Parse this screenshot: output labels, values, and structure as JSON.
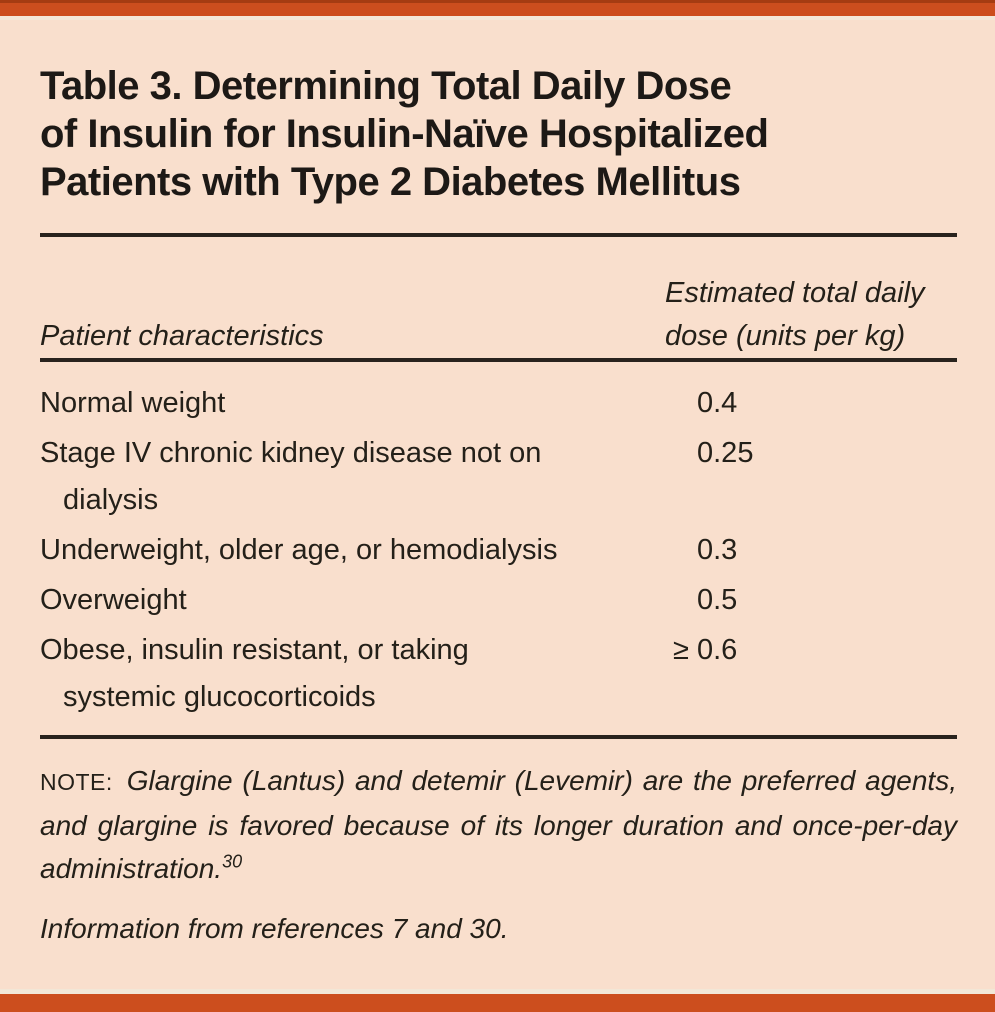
{
  "table": {
    "number_label": "Table 3.",
    "title_full": "Table 3. Determining Total Daily Dose of Insulin for Insulin-Naïve Hospitalized Patients with Type 2 Diabetes Mellitus",
    "title_lines": {
      "0": "Table 3. Determining Total Daily Dose",
      "1": "of Insulin for Insulin-Naïve Hospitalized",
      "2": "Patients with Type 2 Diabetes Mellitus"
    },
    "columns": {
      "characteristics": "Patient characteristics",
      "dose": "Estimated total daily dose (units per kg)"
    },
    "rows": {
      "0": {
        "line1": "Normal weight",
        "line2": "",
        "prefix": "",
        "value": "0.4"
      },
      "1": {
        "line1": "Stage IV chronic kidney disease not on",
        "line2": "dialysis",
        "prefix": "",
        "value": "0.25"
      },
      "2": {
        "line1": "Underweight, older age, or hemodialysis",
        "line2": "",
        "prefix": "",
        "value": "0.3"
      },
      "3": {
        "line1": "Overweight",
        "line2": "",
        "prefix": "",
        "value": "0.5"
      },
      "4": {
        "line1": "Obese, insulin resistant, or taking",
        "line2": "systemic glucocorticoids",
        "prefix": "≥ ",
        "value": "0.6"
      }
    },
    "note": {
      "label": "NOTE:",
      "text": "Glargine (Lantus) and detemir (Levemir) are the preferred agents, and glargine is favored because of its longer duration and once-per-day administration.",
      "reference_superscript": "30"
    },
    "source": "Information from references 7 and 30."
  },
  "colors": {
    "accent_bar": "#cc4e1e",
    "accent_bar_dark_edge": "#a53c12",
    "background": "#f9dfcd",
    "cream_line": "#f2e7d7",
    "text": "#242019",
    "rule": "#29231d"
  }
}
